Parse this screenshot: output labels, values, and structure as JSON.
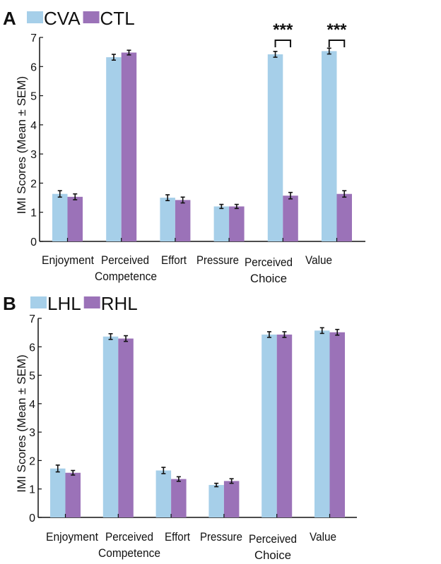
{
  "chart_data": [
    {
      "type": "bar",
      "panel_label": "A",
      "ylabel": "IMI Scores (Mean ± SEM)",
      "ylim": [
        0,
        7
      ],
      "yticks": [
        "0",
        "1",
        "2",
        "3",
        "4",
        "5",
        "6",
        "7"
      ],
      "categories": [
        [
          "Enjoyment"
        ],
        [
          "Perceived",
          "Competence"
        ],
        [
          "Effort"
        ],
        [
          "Pressure"
        ],
        [
          "Perceived",
          "Choice"
        ],
        [
          "Value"
        ]
      ],
      "series": [
        {
          "name": "CVA",
          "color": "#a6cfe9",
          "values": [
            1.63,
            6.32,
            1.5,
            1.2,
            6.42,
            6.53
          ],
          "sem": [
            0.11,
            0.1,
            0.1,
            0.07,
            0.1,
            0.1
          ]
        },
        {
          "name": "CTL",
          "color": "#9b72b8",
          "values": [
            1.53,
            6.48,
            1.42,
            1.2,
            1.57,
            1.63
          ],
          "sem": [
            0.1,
            0.08,
            0.1,
            0.07,
            0.11,
            0.11
          ]
        }
      ],
      "significance": [
        {
          "category_index": 4,
          "label": "***"
        },
        {
          "category_index": 5,
          "label": "***"
        }
      ]
    },
    {
      "type": "bar",
      "panel_label": "B",
      "ylabel": "IMI Scores (Mean ± SEM)",
      "ylim": [
        0,
        7
      ],
      "yticks": [
        "0",
        "1",
        "2",
        "3",
        "4",
        "5",
        "6",
        "7"
      ],
      "categories": [
        [
          "Enjoyment"
        ],
        [
          "Perceived",
          "Competence"
        ],
        [
          "Effort"
        ],
        [
          "Pressure"
        ],
        [
          "Perceived",
          "Choice"
        ],
        [
          "Value"
        ]
      ],
      "series": [
        {
          "name": "LHL",
          "color": "#a6cfe9",
          "values": [
            1.72,
            6.36,
            1.65,
            1.14,
            6.43,
            6.57
          ],
          "sem": [
            0.12,
            0.1,
            0.11,
            0.06,
            0.1,
            0.1
          ]
        },
        {
          "name": "RHL",
          "color": "#9b72b8",
          "values": [
            1.57,
            6.29,
            1.35,
            1.28,
            6.43,
            6.51
          ],
          "sem": [
            0.08,
            0.1,
            0.08,
            0.08,
            0.1,
            0.1
          ]
        }
      ],
      "significance": []
    }
  ]
}
